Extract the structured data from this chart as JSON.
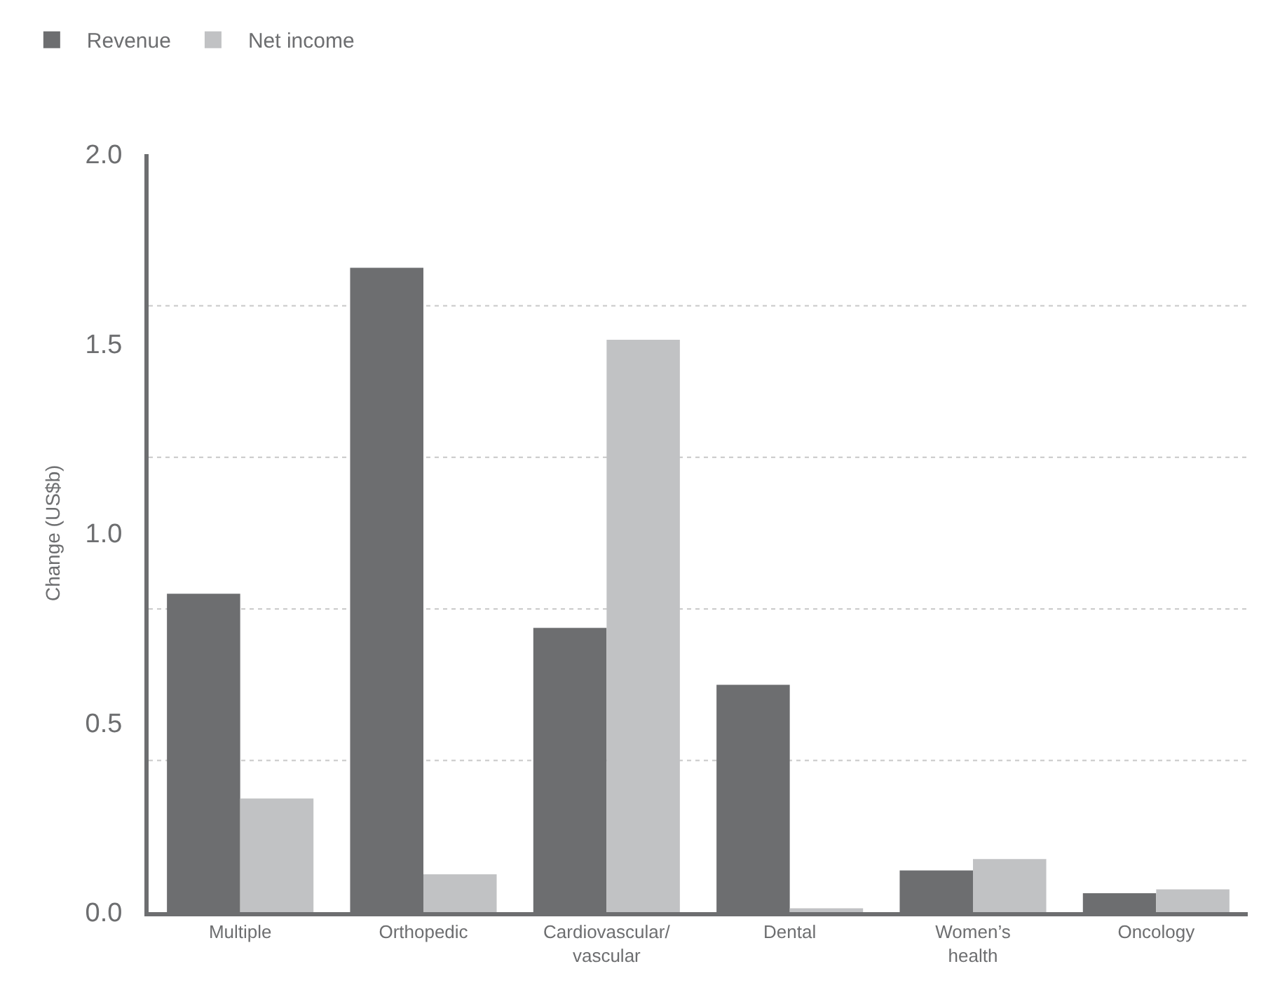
{
  "chart_data": {
    "type": "bar",
    "ylabel": "Change (US$b)",
    "categories": [
      "Multiple",
      "Orthopedic",
      "Cardiovascular/\nvascular",
      "Dental",
      "Women’s\nhealth",
      "Oncology"
    ],
    "series": [
      {
        "name": "Revenue",
        "color": "#6d6e70",
        "values": [
          0.84,
          1.7,
          0.75,
          0.6,
          0.11,
          0.05
        ]
      },
      {
        "name": "Net income",
        "color": "#c1c2c4",
        "values": [
          0.3,
          0.1,
          1.51,
          0.01,
          0.14,
          0.06
        ]
      }
    ],
    "ylim": [
      0,
      2.0
    ],
    "yticks": [
      {
        "value": 0,
        "label": "0.0"
      },
      0.5,
      {
        "value": 1,
        "label": "1.0"
      },
      1.5,
      {
        "value": 2,
        "label": "2.0"
      },
      {
        "value": 0.4,
        "label": null
      },
      {
        "value": 0.8,
        "label": null
      },
      {
        "value": 1.2,
        "label": null
      },
      {
        "value": 1.6,
        "label": null
      }
    ],
    "grid": "y",
    "legend": "top left"
  }
}
